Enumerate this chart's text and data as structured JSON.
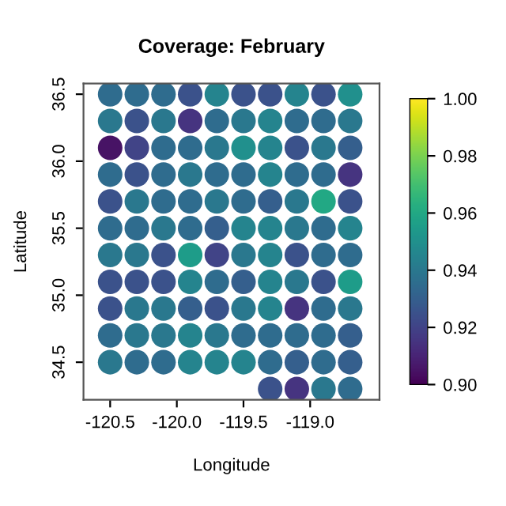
{
  "chart_data": {
    "type": "scatter",
    "title": "Coverage: February",
    "xlabel": "Longitude",
    "ylabel": "Latitude",
    "xlim": [
      -120.7,
      -118.48
    ],
    "ylim": [
      34.22,
      36.58
    ],
    "xticks": [
      -120.5,
      {
        "value": -120.0,
        "label": "-120.0"
      },
      -119.5,
      {
        "value": -119.0,
        "label": "-119.0"
      }
    ],
    "yticks": [
      34.5,
      {
        "value": 35.0,
        "label": "35.0"
      },
      35.5,
      {
        "value": 36.0,
        "label": "36.0"
      },
      36.5
    ],
    "clim": [
      0.9,
      1.0
    ],
    "cticks": [
      {
        "value": 0.9,
        "label": "0.90"
      },
      {
        "value": 0.92,
        "label": "0.92"
      },
      {
        "value": 0.94,
        "label": "0.94"
      },
      {
        "value": 0.96,
        "label": "0.96"
      },
      {
        "value": 0.98,
        "label": "0.98"
      },
      {
        "value": 1.0,
        "label": "1.00"
      }
    ],
    "grid": false,
    "legend": false,
    "marker": "circle",
    "x": [
      -120.5,
      -120.3,
      -120.1,
      -119.9,
      -119.7,
      -119.5,
      -119.3,
      -119.1,
      -118.9,
      -118.7,
      -120.5,
      -120.3,
      -120.1,
      -119.9,
      -119.7,
      -119.5,
      -119.3,
      -119.1,
      -118.9,
      -118.7,
      -120.5,
      -120.3,
      -120.1,
      -119.9,
      -119.7,
      -119.5,
      -119.3,
      -119.1,
      -118.9,
      -118.7,
      -120.5,
      -120.3,
      -120.1,
      -119.9,
      -119.7,
      -119.5,
      -119.3,
      -119.1,
      -118.9,
      -118.7,
      -120.5,
      -120.3,
      -120.1,
      -119.9,
      -119.7,
      -119.5,
      -119.3,
      -119.1,
      -118.9,
      -118.7,
      -120.5,
      -120.3,
      -120.1,
      -119.9,
      -119.7,
      -119.5,
      -119.3,
      -119.1,
      -118.9,
      -118.7,
      -120.5,
      -120.3,
      -120.1,
      -119.9,
      -119.7,
      -119.5,
      -119.3,
      -119.1,
      -118.9,
      -118.7,
      -120.5,
      -120.3,
      -120.1,
      -119.9,
      -119.7,
      -119.5,
      -119.3,
      -119.1,
      -118.9,
      -118.7,
      -120.5,
      -120.3,
      -120.1,
      -119.9,
      -119.7,
      -119.5,
      -119.3,
      -119.1,
      -118.9,
      -118.7,
      -120.5,
      -120.3,
      -120.1,
      -119.9,
      -119.7,
      -119.5,
      -119.3,
      -119.1,
      -118.9,
      -118.7,
      -120.5,
      -120.3,
      -120.1,
      -119.9,
      -119.7,
      -119.5,
      -119.3,
      -119.1,
      -118.9,
      -118.7,
      -119.3,
      -119.1,
      -118.9,
      -118.7
    ],
    "values": [
      36.5,
      36.5,
      36.5,
      36.5,
      36.5,
      36.5,
      36.5,
      36.5,
      36.5,
      36.5,
      36.3,
      36.3,
      36.3,
      36.3,
      36.3,
      36.3,
      36.3,
      36.3,
      36.3,
      36.3,
      36.1,
      36.1,
      36.1,
      36.1,
      36.1,
      36.1,
      36.1,
      36.1,
      36.1,
      36.1,
      35.9,
      35.9,
      35.9,
      35.9,
      35.9,
      35.9,
      35.9,
      35.9,
      35.9,
      35.9,
      35.7,
      35.7,
      35.7,
      35.7,
      35.7,
      35.7,
      35.7,
      35.7,
      35.7,
      35.7,
      35.5,
      35.5,
      35.5,
      35.5,
      35.5,
      35.5,
      35.5,
      35.5,
      35.5,
      35.5,
      35.3,
      35.3,
      35.3,
      35.3,
      35.3,
      35.3,
      35.3,
      35.3,
      35.3,
      35.3,
      35.1,
      35.1,
      35.1,
      35.1,
      35.1,
      35.1,
      35.1,
      35.1,
      35.1,
      35.1,
      34.9,
      34.9,
      34.9,
      34.9,
      34.9,
      34.9,
      34.9,
      34.9,
      34.9,
      34.9,
      34.7,
      34.7,
      34.7,
      34.7,
      34.7,
      34.7,
      34.7,
      34.7,
      34.7,
      34.7,
      34.5,
      34.5,
      34.5,
      34.5,
      34.5,
      34.5,
      34.5,
      34.5,
      34.5,
      34.5,
      34.3,
      34.3,
      34.3,
      34.3
    ],
    "cvalues": [
      0.935,
      0.935,
      0.935,
      0.925,
      0.945,
      0.925,
      0.925,
      0.945,
      0.925,
      0.95,
      0.94,
      0.925,
      0.94,
      0.915,
      0.935,
      0.94,
      0.945,
      0.935,
      0.935,
      0.94,
      0.905,
      0.92,
      0.935,
      0.935,
      0.94,
      0.95,
      0.945,
      0.925,
      0.94,
      0.93,
      0.935,
      0.925,
      0.935,
      0.94,
      0.935,
      0.935,
      0.945,
      0.935,
      0.935,
      0.915,
      0.925,
      0.94,
      0.935,
      0.935,
      0.94,
      0.935,
      0.93,
      0.94,
      0.96,
      0.925,
      0.935,
      0.935,
      0.94,
      0.935,
      0.93,
      0.945,
      0.945,
      0.94,
      0.935,
      0.945,
      0.94,
      0.94,
      0.925,
      0.955,
      0.92,
      0.94,
      0.945,
      0.925,
      0.935,
      0.935,
      0.925,
      0.925,
      0.925,
      0.945,
      0.935,
      0.93,
      0.945,
      0.94,
      0.925,
      0.955,
      0.925,
      0.94,
      0.94,
      0.93,
      0.925,
      0.94,
      0.945,
      0.915,
      0.935,
      0.94,
      0.935,
      0.94,
      0.94,
      0.945,
      0.94,
      0.935,
      0.935,
      0.935,
      0.935,
      0.93,
      0.94,
      0.935,
      0.935,
      0.945,
      0.945,
      0.945,
      0.935,
      0.93,
      0.935,
      0.93,
      0.925,
      0.915,
      0.94,
      0.935
    ]
  }
}
